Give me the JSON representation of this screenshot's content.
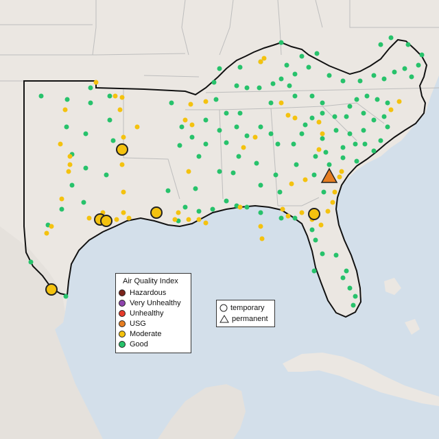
{
  "colors": {
    "water": "#d3dfea",
    "land": "#ebe7e2",
    "land_far": "#e5e1dc",
    "state_border": "#bdbdbd",
    "region_outline": "#111111",
    "good": "#27c26b",
    "moderate": "#f4c20f",
    "usg": "#e67e22",
    "unhealthy": "#e63c2c",
    "very_unhealthy": "#8e44ad",
    "hazardous": "#7b241c"
  },
  "legend": {
    "title": "Air Quality Index",
    "items": [
      {
        "label": "Hazardous",
        "color": "#7b241c"
      },
      {
        "label": "Very Unhealthy",
        "color": "#8e44ad"
      },
      {
        "label": "Unhealthy",
        "color": "#e63c2c"
      },
      {
        "label": "USG",
        "color": "#e67e22"
      },
      {
        "label": "Moderate",
        "color": "#f4c20f"
      },
      {
        "label": "Good",
        "color": "#27c26b"
      }
    ]
  },
  "monitor_types": {
    "temporary": "temporary",
    "permanent": "permanent"
  }
}
